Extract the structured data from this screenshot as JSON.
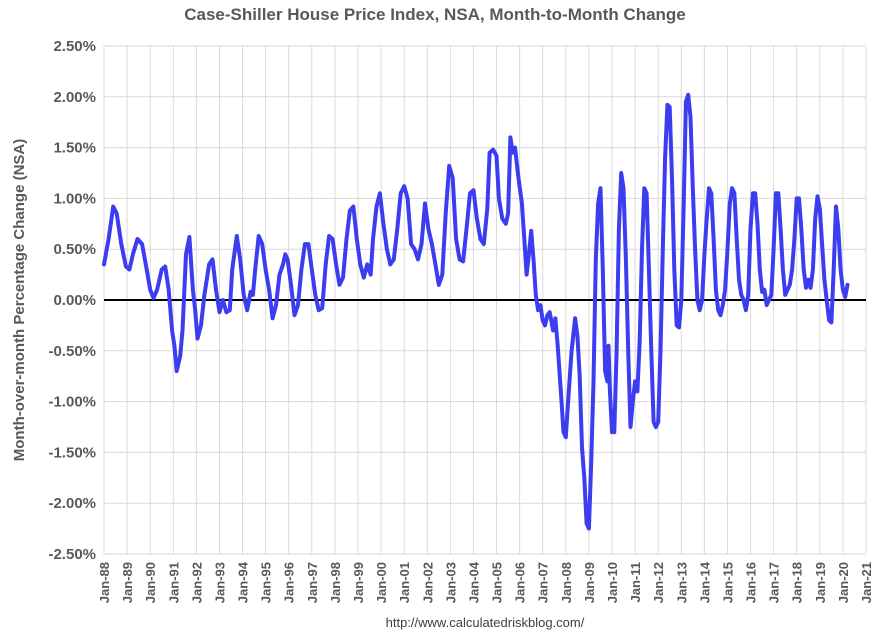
{
  "chart_data": {
    "type": "line",
    "title": "Case-Shiller House Price Index, NSA, Month-to-Month Change",
    "ylabel": "Month-over-month Percentage Change (NSA)",
    "xlabel": "",
    "source": "http://www.calculatedriskblog.com/",
    "ylim": [
      -2.5,
      2.5
    ],
    "y_ticks": [
      "2.50%",
      "2.00%",
      "1.50%",
      "1.00%",
      "0.50%",
      "0.00%",
      "-0.50%",
      "-1.00%",
      "-1.50%",
      "-2.00%",
      "-2.50%"
    ],
    "x_range": [
      1988,
      2021
    ],
    "x_ticks": [
      "Jan-88",
      "Jan-89",
      "Jan-90",
      "Jan-91",
      "Jan-92",
      "Jan-93",
      "Jan-94",
      "Jan-95",
      "Jan-96",
      "Jan-97",
      "Jan-98",
      "Jan-99",
      "Jan-00",
      "Jan-01",
      "Jan-02",
      "Jan-03",
      "Jan-04",
      "Jan-05",
      "Jan-06",
      "Jan-07",
      "Jan-08",
      "Jan-09",
      "Jan-10",
      "Jan-11",
      "Jan-12",
      "Jan-13",
      "Jan-14",
      "Jan-15",
      "Jan-16",
      "Jan-17",
      "Jan-18",
      "Jan-19",
      "Jan-20",
      "Jan-21"
    ],
    "grid": true,
    "series": [
      {
        "name": "Month-to-Month Change (NSA)",
        "color": "#3c3cf0",
        "points": [
          [
            1988.0,
            0.35
          ],
          [
            1988.2,
            0.6
          ],
          [
            1988.4,
            0.92
          ],
          [
            1988.55,
            0.85
          ],
          [
            1988.75,
            0.55
          ],
          [
            1988.95,
            0.33
          ],
          [
            1989.1,
            0.3
          ],
          [
            1989.25,
            0.45
          ],
          [
            1989.45,
            0.6
          ],
          [
            1989.65,
            0.55
          ],
          [
            1989.85,
            0.3
          ],
          [
            1990.0,
            0.1
          ],
          [
            1990.15,
            0.02
          ],
          [
            1990.3,
            0.1
          ],
          [
            1990.5,
            0.3
          ],
          [
            1990.65,
            0.33
          ],
          [
            1990.8,
            0.1
          ],
          [
            1990.95,
            -0.3
          ],
          [
            1991.05,
            -0.45
          ],
          [
            1991.15,
            -0.7
          ],
          [
            1991.3,
            -0.55
          ],
          [
            1991.4,
            -0.3
          ],
          [
            1991.55,
            0.45
          ],
          [
            1991.7,
            0.62
          ],
          [
            1991.85,
            0.1
          ],
          [
            1991.95,
            -0.1
          ],
          [
            1992.05,
            -0.38
          ],
          [
            1992.2,
            -0.25
          ],
          [
            1992.35,
            0.05
          ],
          [
            1992.55,
            0.35
          ],
          [
            1992.7,
            0.4
          ],
          [
            1992.85,
            0.1
          ],
          [
            1993.0,
            -0.12
          ],
          [
            1993.15,
            0.0
          ],
          [
            1993.3,
            -0.12
          ],
          [
            1993.45,
            -0.1
          ],
          [
            1993.55,
            0.3
          ],
          [
            1993.75,
            0.63
          ],
          [
            1993.9,
            0.4
          ],
          [
            1994.05,
            0.05
          ],
          [
            1994.2,
            -0.1
          ],
          [
            1994.35,
            0.08
          ],
          [
            1994.45,
            0.05
          ],
          [
            1994.55,
            0.3
          ],
          [
            1994.7,
            0.63
          ],
          [
            1994.85,
            0.55
          ],
          [
            1995.0,
            0.3
          ],
          [
            1995.15,
            0.1
          ],
          [
            1995.3,
            -0.18
          ],
          [
            1995.45,
            -0.05
          ],
          [
            1995.6,
            0.25
          ],
          [
            1995.75,
            0.35
          ],
          [
            1995.85,
            0.45
          ],
          [
            1995.95,
            0.4
          ],
          [
            1996.1,
            0.15
          ],
          [
            1996.25,
            -0.15
          ],
          [
            1996.4,
            -0.05
          ],
          [
            1996.55,
            0.3
          ],
          [
            1996.7,
            0.55
          ],
          [
            1996.85,
            0.55
          ],
          [
            1997.0,
            0.3
          ],
          [
            1997.15,
            0.05
          ],
          [
            1997.3,
            -0.1
          ],
          [
            1997.45,
            -0.08
          ],
          [
            1997.6,
            0.35
          ],
          [
            1997.75,
            0.63
          ],
          [
            1997.9,
            0.6
          ],
          [
            1998.05,
            0.35
          ],
          [
            1998.2,
            0.15
          ],
          [
            1998.35,
            0.22
          ],
          [
            1998.5,
            0.6
          ],
          [
            1998.65,
            0.88
          ],
          [
            1998.8,
            0.92
          ],
          [
            1998.95,
            0.6
          ],
          [
            1999.1,
            0.35
          ],
          [
            1999.25,
            0.22
          ],
          [
            1999.4,
            0.35
          ],
          [
            1999.55,
            0.25
          ],
          [
            1999.65,
            0.6
          ],
          [
            1999.8,
            0.92
          ],
          [
            1999.95,
            1.05
          ],
          [
            2000.1,
            0.75
          ],
          [
            2000.25,
            0.5
          ],
          [
            2000.4,
            0.35
          ],
          [
            2000.55,
            0.4
          ],
          [
            2000.7,
            0.7
          ],
          [
            2000.85,
            1.05
          ],
          [
            2001.0,
            1.12
          ],
          [
            2001.15,
            1.0
          ],
          [
            2001.3,
            0.55
          ],
          [
            2001.45,
            0.5
          ],
          [
            2001.6,
            0.4
          ],
          [
            2001.75,
            0.55
          ],
          [
            2001.9,
            0.95
          ],
          [
            2002.05,
            0.7
          ],
          [
            2002.2,
            0.55
          ],
          [
            2002.35,
            0.35
          ],
          [
            2002.5,
            0.15
          ],
          [
            2002.65,
            0.25
          ],
          [
            2002.8,
            0.85
          ],
          [
            2002.95,
            1.32
          ],
          [
            2003.1,
            1.2
          ],
          [
            2003.25,
            0.6
          ],
          [
            2003.4,
            0.4
          ],
          [
            2003.55,
            0.38
          ],
          [
            2003.7,
            0.7
          ],
          [
            2003.85,
            1.05
          ],
          [
            2004.0,
            1.08
          ],
          [
            2004.15,
            0.8
          ],
          [
            2004.3,
            0.6
          ],
          [
            2004.45,
            0.55
          ],
          [
            2004.6,
            0.9
          ],
          [
            2004.7,
            1.45
          ],
          [
            2004.85,
            1.48
          ],
          [
            2005.0,
            1.42
          ],
          [
            2005.1,
            1.0
          ],
          [
            2005.25,
            0.8
          ],
          [
            2005.4,
            0.75
          ],
          [
            2005.5,
            0.85
          ],
          [
            2005.6,
            1.6
          ],
          [
            2005.7,
            1.45
          ],
          [
            2005.8,
            1.5
          ],
          [
            2005.95,
            1.2
          ],
          [
            2006.1,
            0.95
          ],
          [
            2006.2,
            0.6
          ],
          [
            2006.3,
            0.25
          ],
          [
            2006.4,
            0.45
          ],
          [
            2006.5,
            0.68
          ],
          [
            2006.6,
            0.4
          ],
          [
            2006.7,
            0.05
          ],
          [
            2006.8,
            -0.1
          ],
          [
            2006.9,
            -0.05
          ],
          [
            2007.0,
            -0.2
          ],
          [
            2007.1,
            -0.25
          ],
          [
            2007.2,
            -0.15
          ],
          [
            2007.3,
            -0.12
          ],
          [
            2007.45,
            -0.3
          ],
          [
            2007.55,
            -0.18
          ],
          [
            2007.65,
            -0.45
          ],
          [
            2007.8,
            -0.95
          ],
          [
            2007.9,
            -1.3
          ],
          [
            2008.0,
            -1.35
          ],
          [
            2008.1,
            -1.0
          ],
          [
            2008.25,
            -0.5
          ],
          [
            2008.4,
            -0.18
          ],
          [
            2008.5,
            -0.35
          ],
          [
            2008.6,
            -0.75
          ],
          [
            2008.7,
            -1.45
          ],
          [
            2008.8,
            -1.75
          ],
          [
            2008.9,
            -2.2
          ],
          [
            2009.0,
            -2.25
          ],
          [
            2009.1,
            -1.6
          ],
          [
            2009.2,
            -0.8
          ],
          [
            2009.3,
            0.4
          ],
          [
            2009.4,
            0.95
          ],
          [
            2009.5,
            1.1
          ],
          [
            2009.6,
            0.3
          ],
          [
            2009.7,
            -0.7
          ],
          [
            2009.8,
            -0.8
          ],
          [
            2009.85,
            -0.45
          ],
          [
            2009.9,
            -0.85
          ],
          [
            2010.0,
            -1.3
          ],
          [
            2010.1,
            -1.3
          ],
          [
            2010.2,
            -0.5
          ],
          [
            2010.3,
            0.7
          ],
          [
            2010.4,
            1.25
          ],
          [
            2010.5,
            1.1
          ],
          [
            2010.6,
            0.4
          ],
          [
            2010.7,
            -0.5
          ],
          [
            2010.8,
            -1.25
          ],
          [
            2010.9,
            -1.0
          ],
          [
            2011.0,
            -0.8
          ],
          [
            2011.1,
            -0.9
          ],
          [
            2011.2,
            -0.4
          ],
          [
            2011.3,
            0.5
          ],
          [
            2011.4,
            1.1
          ],
          [
            2011.5,
            1.05
          ],
          [
            2011.6,
            0.3
          ],
          [
            2011.7,
            -0.5
          ],
          [
            2011.8,
            -1.2
          ],
          [
            2011.9,
            -1.25
          ],
          [
            2012.0,
            -1.2
          ],
          [
            2012.1,
            -0.5
          ],
          [
            2012.2,
            0.5
          ],
          [
            2012.3,
            1.4
          ],
          [
            2012.4,
            1.92
          ],
          [
            2012.5,
            1.9
          ],
          [
            2012.6,
            1.2
          ],
          [
            2012.7,
            0.3
          ],
          [
            2012.8,
            -0.25
          ],
          [
            2012.9,
            -0.27
          ],
          [
            2013.0,
            0.0
          ],
          [
            2013.1,
            0.9
          ],
          [
            2013.2,
            1.95
          ],
          [
            2013.3,
            2.02
          ],
          [
            2013.4,
            1.8
          ],
          [
            2013.5,
            1.1
          ],
          [
            2013.6,
            0.5
          ],
          [
            2013.7,
            0.0
          ],
          [
            2013.8,
            -0.1
          ],
          [
            2013.9,
            0.0
          ],
          [
            2014.0,
            0.45
          ],
          [
            2014.1,
            0.8
          ],
          [
            2014.2,
            1.1
          ],
          [
            2014.3,
            1.05
          ],
          [
            2014.4,
            0.6
          ],
          [
            2014.5,
            0.1
          ],
          [
            2014.6,
            -0.1
          ],
          [
            2014.7,
            -0.15
          ],
          [
            2014.8,
            -0.05
          ],
          [
            2014.9,
            0.1
          ],
          [
            2015.0,
            0.5
          ],
          [
            2015.1,
            0.95
          ],
          [
            2015.2,
            1.1
          ],
          [
            2015.3,
            1.05
          ],
          [
            2015.4,
            0.6
          ],
          [
            2015.5,
            0.2
          ],
          [
            2015.6,
            0.05
          ],
          [
            2015.7,
            0.0
          ],
          [
            2015.8,
            -0.1
          ],
          [
            2015.9,
            0.05
          ],
          [
            2016.0,
            0.7
          ],
          [
            2016.1,
            1.05
          ],
          [
            2016.2,
            1.05
          ],
          [
            2016.3,
            0.75
          ],
          [
            2016.4,
            0.3
          ],
          [
            2016.5,
            0.08
          ],
          [
            2016.6,
            0.1
          ],
          [
            2016.7,
            -0.05
          ],
          [
            2016.8,
            0.0
          ],
          [
            2016.9,
            0.05
          ],
          [
            2017.0,
            0.5
          ],
          [
            2017.1,
            1.05
          ],
          [
            2017.2,
            1.05
          ],
          [
            2017.3,
            0.7
          ],
          [
            2017.4,
            0.3
          ],
          [
            2017.5,
            0.05
          ],
          [
            2017.6,
            0.1
          ],
          [
            2017.7,
            0.15
          ],
          [
            2017.8,
            0.3
          ],
          [
            2017.9,
            0.6
          ],
          [
            2018.0,
            1.0
          ],
          [
            2018.1,
            1.0
          ],
          [
            2018.2,
            0.7
          ],
          [
            2018.3,
            0.3
          ],
          [
            2018.4,
            0.12
          ],
          [
            2018.5,
            0.2
          ],
          [
            2018.6,
            0.12
          ],
          [
            2018.7,
            0.3
          ],
          [
            2018.8,
            0.8
          ],
          [
            2018.9,
            1.02
          ],
          [
            2019.0,
            0.9
          ],
          [
            2019.1,
            0.55
          ],
          [
            2019.2,
            0.2
          ],
          [
            2019.3,
            0.0
          ],
          [
            2019.4,
            -0.2
          ],
          [
            2019.5,
            -0.22
          ],
          [
            2019.6,
            0.3
          ],
          [
            2019.7,
            0.92
          ],
          [
            2019.8,
            0.7
          ],
          [
            2019.9,
            0.3
          ],
          [
            2020.0,
            0.1
          ],
          [
            2020.1,
            0.03
          ],
          [
            2020.2,
            0.15
          ]
        ]
      }
    ]
  }
}
